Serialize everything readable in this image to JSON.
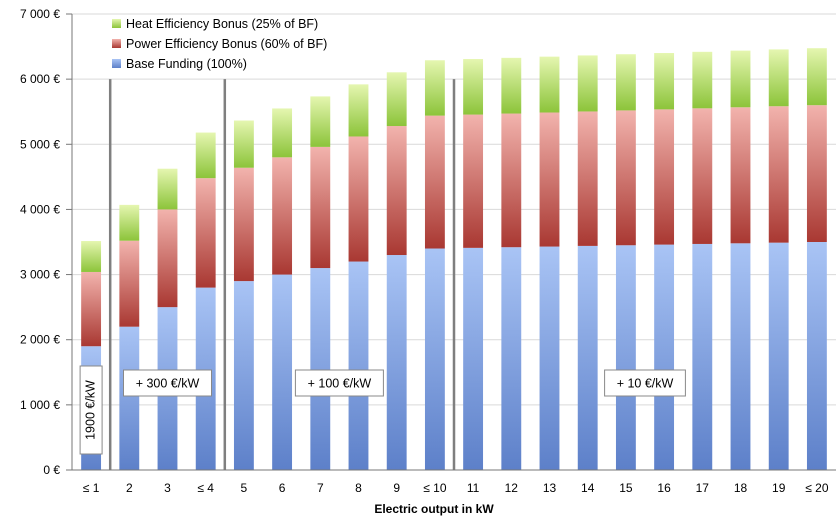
{
  "chart_data": {
    "type": "bar",
    "stacked": true,
    "xlabel": "Electric output in kW",
    "ylabel": "",
    "ylim": [
      0,
      7000
    ],
    "ytick_step": 1000,
    "y_tick_labels": [
      "0 €",
      "1 000 €",
      "2 000 €",
      "3 000 €",
      "4 000 €",
      "5 000 €",
      "6 000 €",
      "7 000 €"
    ],
    "grid": true,
    "legend_position": "top-left",
    "categories": [
      "≤ 1",
      "2",
      "3",
      "≤ 4",
      "5",
      "6",
      "7",
      "8",
      "9",
      "≤ 10",
      "11",
      "12",
      "13",
      "14",
      "15",
      "16",
      "17",
      "18",
      "19",
      "≤ 20"
    ],
    "series": [
      {
        "name": "Base Funding (100%)",
        "color_top": "#a9c4f5",
        "color_bottom": "#5d80c9",
        "values": [
          1900,
          2200,
          2500,
          2800,
          2900,
          3000,
          3100,
          3200,
          3300,
          3400,
          3410,
          3420,
          3430,
          3440,
          3450,
          3460,
          3470,
          3480,
          3490,
          3500
        ]
      },
      {
        "name": "Power Efficiency Bonus (60% of BF)",
        "color_top": "#f2b3ad",
        "color_bottom": "#a93832",
        "values": [
          1140,
          1320,
          1500,
          1680,
          1740,
          1800,
          1860,
          1920,
          1980,
          2040,
          2046,
          2052,
          2058,
          2064,
          2070,
          2076,
          2082,
          2088,
          2094,
          2100
        ]
      },
      {
        "name": "Heat Efficiency Bonus (25% of BF)",
        "color_top": "#e5f6b0",
        "color_bottom": "#8cc43a",
        "values": [
          475,
          550,
          625,
          700,
          725,
          750,
          775,
          800,
          825,
          850,
          852.5,
          855,
          857.5,
          860,
          862.5,
          865,
          867.5,
          870,
          872.5,
          875
        ]
      }
    ],
    "legend_order": [
      2,
      1,
      0
    ],
    "dividers_after": [
      1,
      4,
      10
    ],
    "annotations": [
      {
        "text": "1900 €/kW",
        "category_index": 0,
        "vertical": true
      },
      {
        "text": "+ 300 €/kW",
        "segment": [
          1,
          3
        ]
      },
      {
        "text": "+ 100 €/kW",
        "segment": [
          4,
          9
        ]
      },
      {
        "text": "+ 10 €/kW",
        "segment": [
          10,
          19
        ]
      }
    ]
  }
}
